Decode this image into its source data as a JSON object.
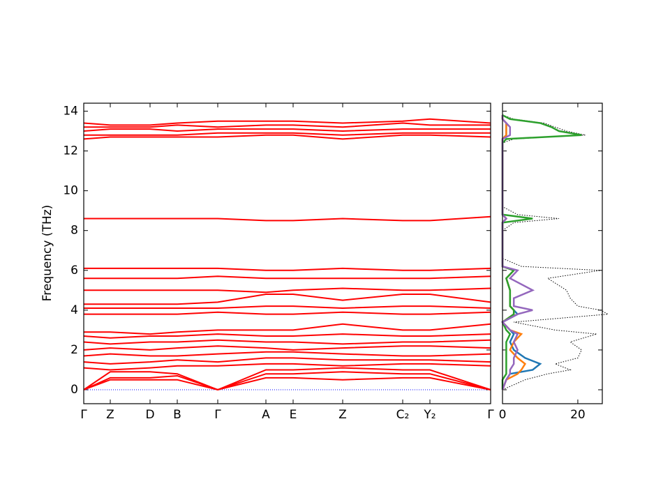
{
  "chart_data": [
    {
      "type": "line",
      "ylabel": "Frequency (THz)",
      "x": [
        0,
        0.38,
        0.95,
        1.34,
        1.92,
        2.61,
        3.0,
        3.71,
        4.57,
        4.96,
        5.83
      ],
      "xlim": [
        0,
        5.83
      ],
      "xticks": [
        {
          "value": 0,
          "label": "Γ"
        },
        {
          "value": 0.38,
          "label": "Z"
        },
        {
          "value": 0.95,
          "label": "D"
        },
        {
          "value": 1.34,
          "label": "B"
        },
        {
          "value": 1.92,
          "label": "Γ"
        },
        {
          "value": 2.61,
          "label": "A"
        },
        {
          "value": 3.0,
          "label": "E"
        },
        {
          "value": 3.71,
          "label": "Z"
        },
        {
          "value": 4.57,
          "label": "C₂"
        },
        {
          "value": 4.96,
          "label": "Y₂"
        },
        {
          "value": 5.83,
          "label": "Γ"
        }
      ],
      "ylim": [
        -0.7,
        14.4
      ],
      "yticks": [
        0,
        2,
        4,
        6,
        8,
        10,
        12,
        14
      ],
      "zero_line_color": "#0000ff",
      "series": [
        {
          "color": "#ff0000",
          "values": [
            0,
            0.5,
            0.5,
            0.5,
            0,
            0.6,
            0.6,
            0.5,
            0.6,
            0.6,
            0
          ]
        },
        {
          "color": "#ff0000",
          "values": [
            0,
            0.6,
            0.6,
            0.7,
            0,
            0.8,
            0.8,
            0.9,
            0.8,
            0.8,
            0
          ]
        },
        {
          "color": "#ff0000",
          "values": [
            0,
            0.9,
            0.9,
            0.8,
            0,
            1.0,
            1.0,
            1.1,
            1.0,
            1.0,
            0
          ]
        },
        {
          "color": "#ff0000",
          "values": [
            1.1,
            1.0,
            1.1,
            1.2,
            1.2,
            1.3,
            1.3,
            1.2,
            1.3,
            1.3,
            1.2
          ]
        },
        {
          "color": "#ff0000",
          "values": [
            1.4,
            1.3,
            1.4,
            1.5,
            1.4,
            1.6,
            1.6,
            1.5,
            1.5,
            1.5,
            1.4
          ]
        },
        {
          "color": "#ff0000",
          "values": [
            1.7,
            1.8,
            1.7,
            1.7,
            1.8,
            1.9,
            1.9,
            1.8,
            1.7,
            1.7,
            1.8
          ]
        },
        {
          "color": "#ff0000",
          "values": [
            2.0,
            2.1,
            2.0,
            2.1,
            2.2,
            2.1,
            2.0,
            2.1,
            2.2,
            2.2,
            2.1
          ]
        },
        {
          "color": "#ff0000",
          "values": [
            2.4,
            2.3,
            2.4,
            2.4,
            2.5,
            2.4,
            2.4,
            2.3,
            2.4,
            2.4,
            2.5
          ]
        },
        {
          "color": "#ff0000",
          "values": [
            2.7,
            2.6,
            2.7,
            2.7,
            2.8,
            2.7,
            2.7,
            2.8,
            2.7,
            2.7,
            2.8
          ]
        },
        {
          "color": "#ff0000",
          "values": [
            2.9,
            2.9,
            2.8,
            2.9,
            3.0,
            3.0,
            3.0,
            3.3,
            3.0,
            3.0,
            3.3
          ]
        },
        {
          "color": "#ff0000",
          "values": [
            3.8,
            3.8,
            3.8,
            3.8,
            3.9,
            3.8,
            3.8,
            3.9,
            3.8,
            3.8,
            3.9
          ]
        },
        {
          "color": "#ff0000",
          "values": [
            4.1,
            4.1,
            4.1,
            4.1,
            4.1,
            4.2,
            4.2,
            4.1,
            4.2,
            4.2,
            4.1
          ]
        },
        {
          "color": "#ff0000",
          "values": [
            4.3,
            4.3,
            4.3,
            4.3,
            4.4,
            4.8,
            4.8,
            4.5,
            4.8,
            4.8,
            4.4
          ]
        },
        {
          "color": "#ff0000",
          "values": [
            5.0,
            5.0,
            5.0,
            5.0,
            5.0,
            4.9,
            5.0,
            5.1,
            5.0,
            5.0,
            5.1
          ]
        },
        {
          "color": "#ff0000",
          "values": [
            5.6,
            5.6,
            5.6,
            5.6,
            5.7,
            5.6,
            5.6,
            5.6,
            5.6,
            5.6,
            5.7
          ]
        },
        {
          "color": "#ff0000",
          "values": [
            6.1,
            6.1,
            6.1,
            6.1,
            6.1,
            6.0,
            6.0,
            6.1,
            6.0,
            6.0,
            6.1
          ]
        },
        {
          "color": "#ff0000",
          "values": [
            8.6,
            8.6,
            8.6,
            8.6,
            8.6,
            8.5,
            8.5,
            8.6,
            8.5,
            8.5,
            8.7
          ]
        },
        {
          "color": "#ff0000",
          "values": [
            12.6,
            12.7,
            12.7,
            12.7,
            12.7,
            12.8,
            12.8,
            12.6,
            12.8,
            12.8,
            12.7
          ]
        },
        {
          "color": "#ff0000",
          "values": [
            12.8,
            12.8,
            12.8,
            12.8,
            12.9,
            12.9,
            12.9,
            12.8,
            12.9,
            12.9,
            12.9
          ]
        },
        {
          "color": "#ff0000",
          "values": [
            13.0,
            13.1,
            13.1,
            13.0,
            13.1,
            13.1,
            13.1,
            13.0,
            13.1,
            13.1,
            13.1
          ]
        },
        {
          "color": "#ff0000",
          "values": [
            13.2,
            13.2,
            13.2,
            13.3,
            13.2,
            13.3,
            13.3,
            13.2,
            13.4,
            13.3,
            13.3
          ]
        },
        {
          "color": "#ff0000",
          "values": [
            13.4,
            13.3,
            13.3,
            13.4,
            13.5,
            13.5,
            13.5,
            13.4,
            13.5,
            13.6,
            13.4
          ]
        }
      ]
    },
    {
      "type": "line",
      "orientation": "horizontal",
      "y": [
        0,
        0.5,
        0.8,
        1.0,
        1.3,
        1.6,
        2.0,
        2.4,
        2.8,
        3.0,
        3.4,
        3.8,
        4.0,
        4.2,
        4.6,
        5.0,
        5.6,
        6.0,
        6.2,
        6.6,
        8.0,
        8.4,
        8.6,
        8.8,
        9.2,
        12.4,
        12.6,
        12.8,
        13.0,
        13.2,
        13.4,
        13.6,
        13.8
      ],
      "xlim": [
        0,
        26.5
      ],
      "xticks": [
        0,
        20
      ],
      "ylim": [
        -0.7,
        14.4
      ],
      "yticks": [
        0,
        2,
        4,
        6,
        8,
        10,
        12,
        14
      ],
      "series": [
        {
          "color": "#000000",
          "dash": "dotted",
          "values": [
            0,
            6,
            12,
            18,
            14,
            20,
            21,
            18,
            25,
            14,
            3,
            28,
            26,
            20,
            18,
            17,
            12,
            26,
            5,
            0,
            0,
            3,
            15,
            4,
            0,
            0,
            3,
            22,
            17,
            14,
            11,
            3,
            0
          ]
        },
        {
          "color": "#1f77b4",
          "values": [
            0,
            1,
            2,
            8,
            10,
            6,
            3,
            2,
            3,
            2,
            0,
            4,
            3,
            2,
            2,
            2,
            1,
            3,
            0,
            0,
            0,
            0,
            1,
            0,
            0,
            0,
            0,
            1,
            1,
            1,
            1,
            0,
            0
          ]
        },
        {
          "color": "#ff7f0e",
          "values": [
            0,
            1,
            4,
            5,
            6,
            4,
            2,
            3,
            5,
            2,
            0,
            3,
            3,
            2,
            2,
            2,
            1,
            3,
            0,
            0,
            0,
            0,
            1,
            0,
            0,
            0,
            0,
            1,
            1,
            1,
            1,
            0,
            0
          ]
        },
        {
          "color": "#2ca02c",
          "values": [
            0,
            0,
            1,
            1,
            1,
            1,
            1,
            1,
            2,
            1,
            0,
            3,
            3,
            2,
            2,
            2,
            1,
            3,
            0,
            0,
            0,
            0,
            8,
            0,
            0,
            0,
            1,
            21,
            15,
            13,
            10,
            2,
            0
          ]
        },
        {
          "color": "#9467bd",
          "values": [
            0,
            1,
            2,
            2,
            3,
            3,
            4,
            3,
            4,
            2,
            0,
            4,
            8,
            3,
            3,
            8,
            2,
            4,
            0,
            0,
            0,
            0,
            1,
            0,
            0,
            0,
            0,
            2,
            2,
            2,
            1,
            0,
            0
          ]
        }
      ]
    }
  ]
}
